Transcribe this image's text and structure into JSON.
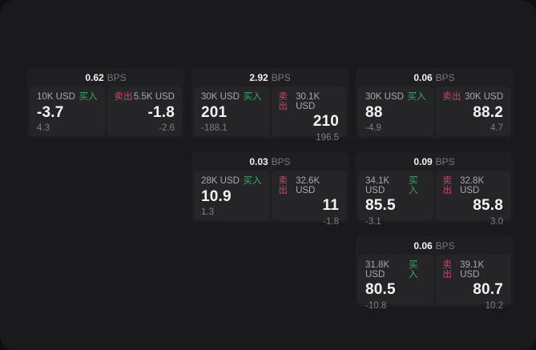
{
  "labels": {
    "bps_suffix": "BPS",
    "buy": "买入",
    "sell": "卖出"
  },
  "colors": {
    "backdrop": "#101012",
    "page_bg": "#1a1a1c",
    "card_bg": "#1f1f21",
    "panel_bg": "#252528",
    "buy_green": "#3da865",
    "sell_red": "#d5406a",
    "text_primary": "#f5f5f6",
    "text_secondary": "#a9a9ae",
    "text_muted": "#7e7e83"
  },
  "cards": [
    {
      "bps": "0.62",
      "buy": {
        "size": "10K USD",
        "price": "-3.7",
        "delta": "4.3"
      },
      "sell": {
        "size": "5.5K USD",
        "price": "-1.8",
        "delta": "-2.6"
      }
    },
    {
      "bps": "2.92",
      "buy": {
        "size": "30K USD",
        "price": "201",
        "delta": "-188.1"
      },
      "sell": {
        "size": "30.1K USD",
        "price": "210",
        "delta": "196.5"
      }
    },
    {
      "bps": "0.06",
      "buy": {
        "size": "30K USD",
        "price": "88",
        "delta": "-4.9"
      },
      "sell": {
        "size": "30K USD",
        "price": "88.2",
        "delta": "4.7"
      }
    },
    {
      "bps": "0.03",
      "buy": {
        "size": "28K USD",
        "price": "10.9",
        "delta": "1.3"
      },
      "sell": {
        "size": "32.6K USD",
        "price": "11",
        "delta": "-1.8"
      }
    },
    {
      "bps": "0.09",
      "buy": {
        "size": "34.1K USD",
        "price": "85.5",
        "delta": "-3.1"
      },
      "sell": {
        "size": "32.8K USD",
        "price": "85.8",
        "delta": "3.0"
      }
    },
    {
      "bps": "0.06",
      "buy": {
        "size": "31.8K USD",
        "price": "80.5",
        "delta": "-10.8"
      },
      "sell": {
        "size": "39.1K USD",
        "price": "80.7",
        "delta": "10.2"
      }
    }
  ]
}
